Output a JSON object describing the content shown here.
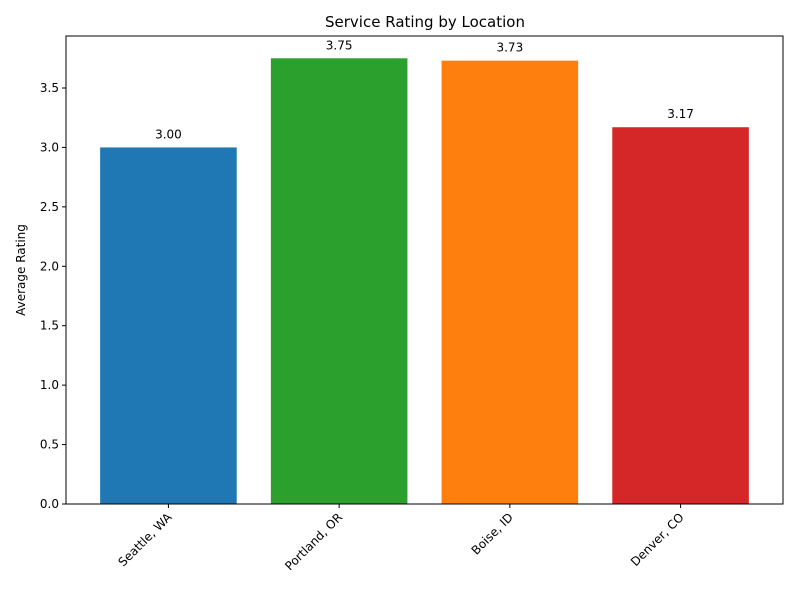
{
  "chart_data": {
    "type": "bar",
    "title": "Service Rating by Location",
    "xlabel": "",
    "ylabel": "Average Rating",
    "categories": [
      "Seattle, WA",
      "Portland, OR",
      "Boise, ID",
      "Denver, CO"
    ],
    "values": [
      3.0,
      3.75,
      3.73,
      3.17
    ],
    "value_labels": [
      "3.00",
      "3.75",
      "3.73",
      "3.17"
    ],
    "colors": [
      "#1f77b4",
      "#2ca02c",
      "#ff7f0e",
      "#d62728"
    ],
    "ylim": [
      0,
      3.9375
    ],
    "yticks": [
      0.0,
      0.5,
      1.0,
      1.5,
      2.0,
      2.5,
      3.0,
      3.5
    ],
    "ytick_labels": [
      "0.0",
      "0.5",
      "1.0",
      "1.5",
      "2.0",
      "2.5",
      "3.0",
      "3.5"
    ],
    "grid": false,
    "legend": "none"
  }
}
